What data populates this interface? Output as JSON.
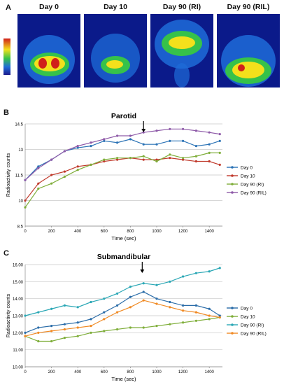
{
  "panel_a": {
    "letter": "A",
    "images": [
      {
        "label": "Day 0"
      },
      {
        "label": "Day 10"
      },
      {
        "label": "Day 90 (RI)"
      },
      {
        "label": "Day 90 (RIL)"
      }
    ],
    "colors": {
      "background": "#0b1a8a",
      "low": "#1e6cd8",
      "mid": "#36c24a",
      "high": "#f3e01c",
      "max": "#d0201a"
    }
  },
  "chart_data": [
    {
      "type": "line",
      "panel": "B",
      "title": "Parotid",
      "xlabel": "Time (sec)",
      "ylabel": "Radioactivity counts",
      "xlim": [
        0,
        1500
      ],
      "ylim": [
        8.5,
        14.5
      ],
      "x_ticks": [
        0,
        200,
        400,
        600,
        800,
        1000,
        1200,
        1400
      ],
      "y_ticks": [
        8.5,
        10,
        11.5,
        13,
        14.5
      ],
      "grid": "horizontal",
      "legend": "right",
      "annotation": {
        "type": "arrow",
        "x": 900
      },
      "x": [
        0,
        100,
        200,
        300,
        400,
        500,
        600,
        700,
        800,
        900,
        1000,
        1100,
        1200,
        1300,
        1400,
        1480
      ],
      "series": [
        {
          "name": "Day 0",
          "color": "#2a72b5",
          "values": [
            11.2,
            12.0,
            12.4,
            12.9,
            13.1,
            13.2,
            13.5,
            13.4,
            13.6,
            13.3,
            13.3,
            13.5,
            13.5,
            13.2,
            13.3,
            13.5
          ]
        },
        {
          "name": "Day 10",
          "color": "#c0392b",
          "values": [
            10.0,
            11.0,
            11.5,
            11.7,
            12.0,
            12.1,
            12.3,
            12.4,
            12.5,
            12.4,
            12.4,
            12.5,
            12.4,
            12.3,
            12.3,
            12.1
          ]
        },
        {
          "name": "Day 90 (RI)",
          "color": "#7fae3a",
          "values": [
            9.6,
            10.7,
            11.0,
            11.4,
            11.8,
            12.1,
            12.4,
            12.5,
            12.5,
            12.6,
            12.3,
            12.7,
            12.5,
            12.6,
            12.8,
            12.8
          ]
        },
        {
          "name": "Day 90 (RIL)",
          "color": "#8e5aa8",
          "values": [
            11.2,
            11.9,
            12.4,
            12.9,
            13.2,
            13.4,
            13.6,
            13.8,
            13.8,
            14.0,
            14.1,
            14.2,
            14.2,
            14.1,
            14.0,
            13.9
          ]
        }
      ]
    },
    {
      "type": "line",
      "panel": "C",
      "title": "Submandibular",
      "xlabel": "Time (sec)",
      "ylabel": "Radioactivity counts",
      "xlim": [
        0,
        1500
      ],
      "ylim": [
        10.0,
        16.0
      ],
      "x_ticks": [
        0,
        200,
        400,
        600,
        800,
        1000,
        1200,
        1400
      ],
      "y_ticks": [
        "10.00",
        "11.00",
        "12.00",
        "13.00",
        "14.00",
        "15.00",
        "16.00"
      ],
      "grid": "horizontal",
      "legend": "right",
      "annotation": {
        "type": "arrow",
        "x": 890
      },
      "x": [
        0,
        100,
        200,
        300,
        400,
        500,
        600,
        700,
        800,
        900,
        1000,
        1100,
        1200,
        1300,
        1400,
        1480
      ],
      "series": [
        {
          "name": "Day 0",
          "color": "#2a6ca8",
          "values": [
            12.0,
            12.3,
            12.4,
            12.5,
            12.6,
            12.8,
            13.2,
            13.6,
            14.1,
            14.4,
            14.0,
            13.8,
            13.6,
            13.6,
            13.4,
            13.0
          ]
        },
        {
          "name": "Day 10",
          "color": "#7fae3a",
          "values": [
            11.8,
            11.5,
            11.5,
            11.7,
            11.8,
            12.0,
            12.1,
            12.2,
            12.3,
            12.3,
            12.4,
            12.5,
            12.6,
            12.7,
            12.8,
            12.9
          ]
        },
        {
          "name": "Day 90 (RI)",
          "color": "#2aa7b5",
          "values": [
            13.0,
            13.2,
            13.4,
            13.6,
            13.5,
            13.8,
            14.0,
            14.3,
            14.7,
            14.9,
            14.8,
            15.0,
            15.3,
            15.5,
            15.6,
            15.8
          ]
        },
        {
          "name": "Day 90 (RIL)",
          "color": "#f08a24",
          "values": [
            11.8,
            12.0,
            12.1,
            12.2,
            12.3,
            12.4,
            12.8,
            13.2,
            13.5,
            13.9,
            13.7,
            13.5,
            13.3,
            13.2,
            13.0,
            12.9
          ]
        }
      ]
    }
  ]
}
